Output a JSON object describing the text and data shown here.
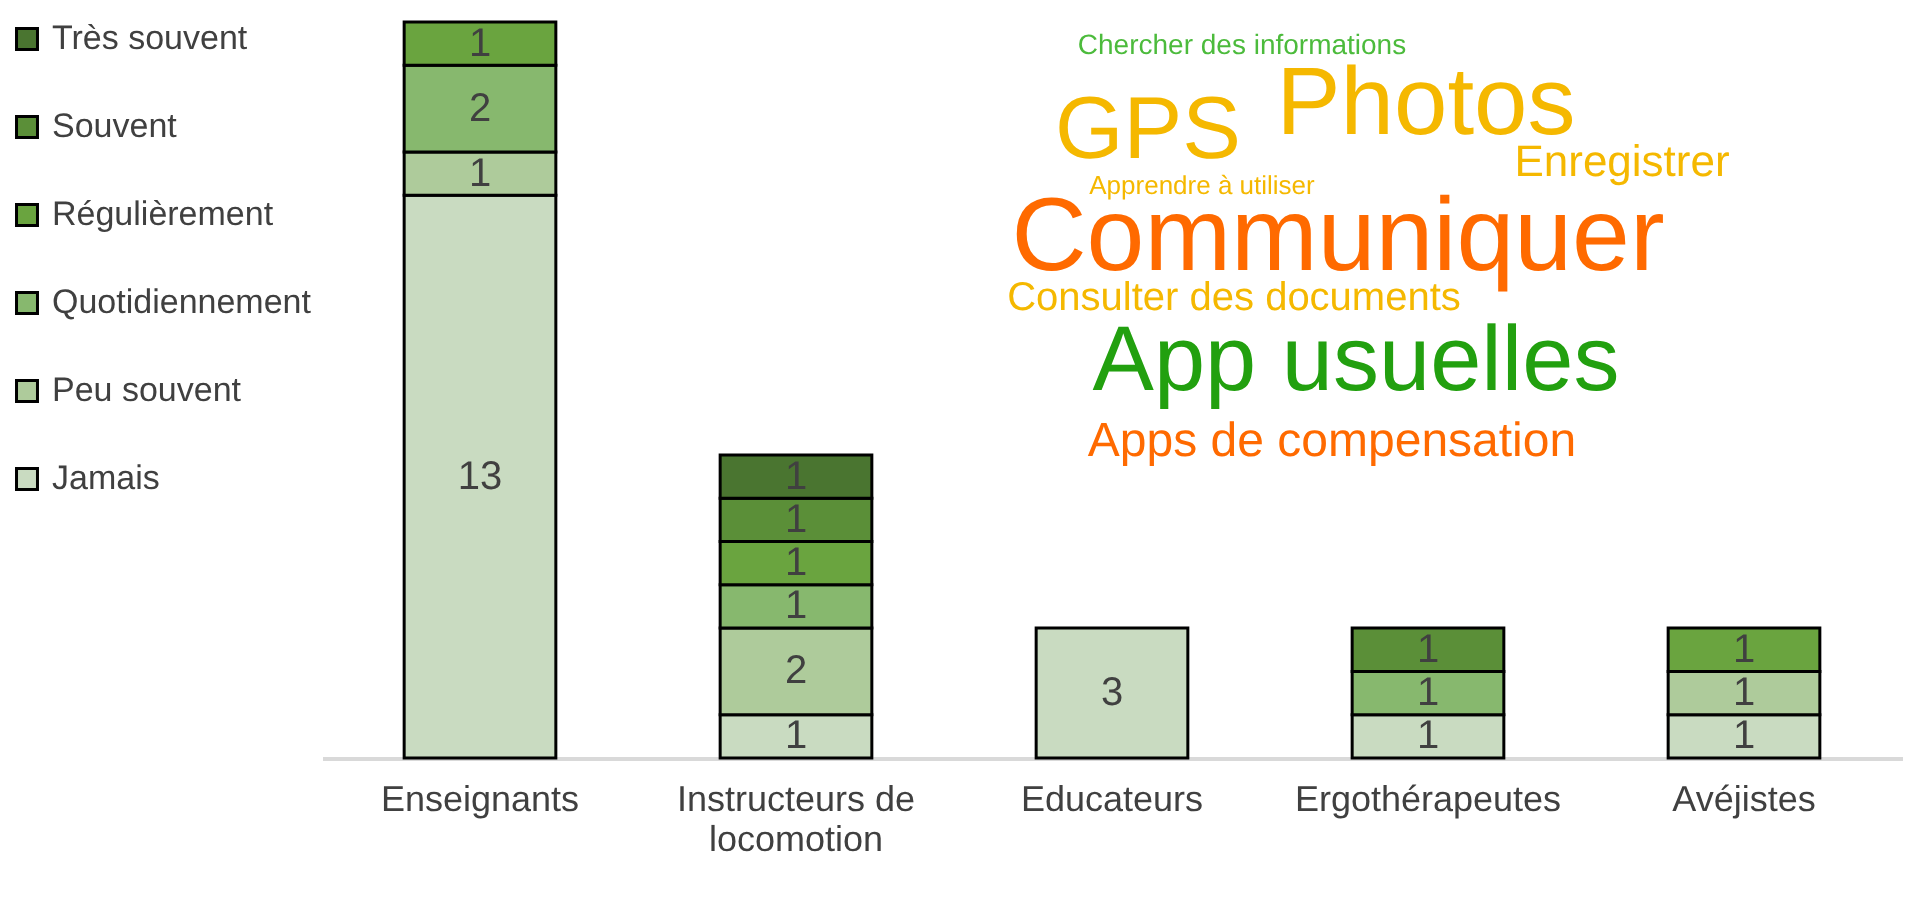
{
  "chart_data": {
    "type": "bar",
    "stacked": true,
    "data_labels": true,
    "legend": "left",
    "categories": [
      "Enseignants",
      "Instructeurs de locomotion",
      "Educateurs",
      "Ergothérapeutes",
      "Avéjistes"
    ],
    "series": [
      {
        "name": "Jamais",
        "color": "#c9dbc1",
        "values": [
          13,
          1,
          3,
          1,
          1
        ]
      },
      {
        "name": "Peu souvent",
        "color": "#aecb9b",
        "values": [
          1,
          2,
          null,
          null,
          1
        ]
      },
      {
        "name": "Quotidiennement",
        "color": "#87b86e",
        "values": [
          2,
          1,
          null,
          1,
          null
        ]
      },
      {
        "name": "Régulièrement",
        "color": "#6aa43f",
        "values": [
          1,
          1,
          null,
          null,
          1
        ]
      },
      {
        "name": "Souvent",
        "color": "#5b8f38",
        "values": [
          null,
          1,
          null,
          1,
          null
        ]
      },
      {
        "name": "Très souvent",
        "color": "#4a7530",
        "values": [
          null,
          1,
          null,
          null,
          null
        ]
      }
    ],
    "annotations": [
      "Chercher des informations",
      "GPS",
      "Photos",
      "Enregistrer",
      "Apprendre à utiliser",
      "Communiquer",
      "Consulter des documents",
      "App usuelles",
      "Apps de compensation"
    ]
  }
}
